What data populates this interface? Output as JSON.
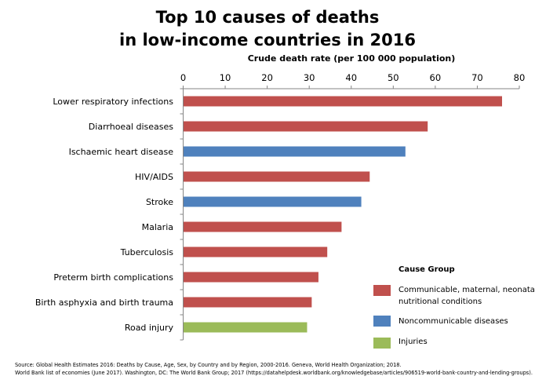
{
  "chart_data": {
    "type": "bar",
    "orientation": "horizontal",
    "title_lines": [
      "Top 10 causes of deaths",
      "in low-income countries in 2016"
    ],
    "xlabel": "Crude death rate (per 100 000 population)",
    "xlim": [
      0,
      80
    ],
    "xticks": [
      0,
      10,
      20,
      30,
      40,
      50,
      60,
      70,
      80
    ],
    "axis_position": "top",
    "grid": false,
    "categories": [
      "Lower respiratory infections",
      "Diarrhoeal diseases",
      "Ischaemic heart disease",
      "HIV/AIDS",
      "Stroke",
      "Malaria",
      "Tuberculosis",
      "Preterm birth complications",
      "Birth asphyxia and birth trauma",
      "Road injury"
    ],
    "values": [
      75.8,
      58.1,
      52.8,
      44.3,
      42.3,
      37.6,
      34.2,
      32.1,
      30.5,
      29.4
    ],
    "groups": [
      0,
      0,
      1,
      0,
      1,
      0,
      0,
      0,
      0,
      2
    ],
    "legend": {
      "title": "Cause Group",
      "placement": "bottom-right",
      "entries": [
        {
          "name": "Communicable, maternal, neonatal and nutritional conditions",
          "color": "#c0504d"
        },
        {
          "name": "Noncommunicable diseases",
          "color": "#4f81bd"
        },
        {
          "name": "Injuries",
          "color": "#9bbb59"
        }
      ]
    }
  },
  "source": {
    "line1": "Source: Global Health Estimates 2016: Deaths by Cause, Age, Sex, by Country and by Region, 2000-2016. Geneva, World Health Organization; 2018.",
    "line2": "World Bank list of economies (June 2017). Washington, DC: The World Bank Group;  2017 (https://datahelpdesk.worldbank.org/knowledgebase/articles/906519-world-bank-country-and-lending-groups)."
  }
}
